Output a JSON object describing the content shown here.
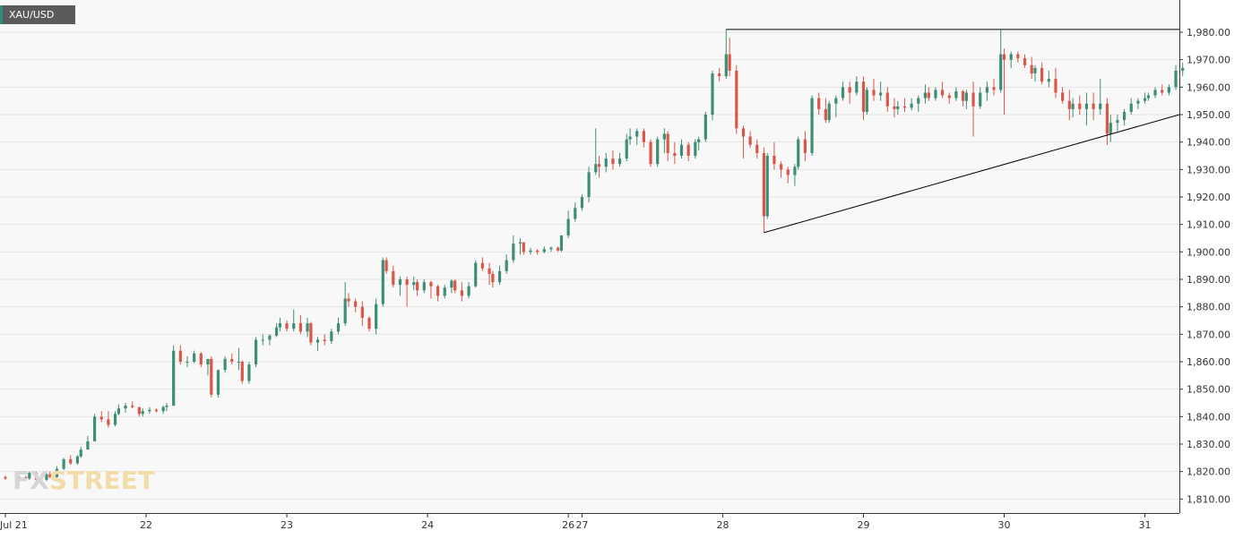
{
  "symbol": "XAU/USD",
  "watermark": {
    "left": "FX",
    "right": "STREET"
  },
  "colors": {
    "up": "#3e8e74",
    "down": "#d9574a",
    "plot_bg": "#f8f8f8",
    "grid": "#e6e6e6",
    "axis": "#333333",
    "trendline": "#000000"
  },
  "chart_data": {
    "type": "candlestick",
    "ylim": [
      1805,
      1985
    ],
    "y_ticks": [
      1810,
      1820,
      1830,
      1840,
      1850,
      1860,
      1870,
      1880,
      1890,
      1900,
      1910,
      1920,
      1930,
      1940,
      1950,
      1960,
      1970,
      1980
    ],
    "y_tick_labels": [
      "1,810.00",
      "1,820.00",
      "1,830.00",
      "1,840.00",
      "1,850.00",
      "1,860.00",
      "1,870.00",
      "1,880.00",
      "1,890.00",
      "1,900.00",
      "1,910.00",
      "1,920.00",
      "1,930.00",
      "1,940.00",
      "1,950.00",
      "1,960.00",
      "1,970.00",
      "1,980.00"
    ],
    "x_ticks": [
      {
        "label": "Jul 21",
        "index": 0
      },
      {
        "label": "22",
        "index": 41
      },
      {
        "label": "23",
        "index": 82
      },
      {
        "label": "24",
        "index": 123
      },
      {
        "label": "26",
        "index": 164
      },
      {
        "label": "27",
        "index": 168
      },
      {
        "label": "28",
        "index": 209
      },
      {
        "label": "29",
        "index": 250
      },
      {
        "label": "30",
        "index": 291
      },
      {
        "label": "31",
        "index": 332
      }
    ],
    "x_extent": [
      0,
      345
    ],
    "candle_spacing": 4,
    "candles": [
      [
        0,
        1818.0,
        1818.5,
        1817.0,
        1817.5
      ],
      [
        4,
        1817.5,
        1818.5,
        1816.5,
        1818.0
      ],
      [
        6,
        1818.0,
        1818.5,
        1817.0,
        1817.5
      ],
      [
        7,
        1817.5,
        1820.0,
        1817.0,
        1819.5
      ],
      [
        9,
        1819.5,
        1820.0,
        1816.0,
        1817.0
      ],
      [
        12,
        1817.0,
        1819.5,
        1816.5,
        1819.0
      ],
      [
        13,
        1819.0,
        1820.0,
        1817.5,
        1818.0
      ],
      [
        15,
        1818.0,
        1822.0,
        1817.5,
        1821.0
      ],
      [
        17,
        1821.0,
        1825.0,
        1820.5,
        1824.5
      ],
      [
        19,
        1824.5,
        1826.0,
        1822.5,
        1823.0
      ],
      [
        21,
        1823.0,
        1826.0,
        1822.5,
        1825.5
      ],
      [
        22,
        1825.5,
        1829.0,
        1825.0,
        1828.0
      ],
      [
        24,
        1828.0,
        1833.0,
        1828.0,
        1831.0
      ],
      [
        26,
        1831.0,
        1841.0,
        1831.0,
        1840.0
      ],
      [
        28,
        1840.0,
        1842.0,
        1838.0,
        1839.0
      ],
      [
        30,
        1839.0,
        1842.0,
        1836.0,
        1837.0
      ],
      [
        32,
        1837.0,
        1842.0,
        1836.5,
        1841.0
      ],
      [
        33,
        1841.0,
        1844.5,
        1840.5,
        1843.0
      ],
      [
        35,
        1843.0,
        1845.0,
        1841.5,
        1844.0
      ],
      [
        37,
        1844.0,
        1845.5,
        1843.0,
        1843.5
      ],
      [
        39,
        1843.5,
        1843.5,
        1840.0,
        1841.0
      ],
      [
        40,
        1841.0,
        1843.0,
        1840.0,
        1842.0
      ],
      [
        42,
        1842.0,
        1843.5,
        1841.0,
        1842.5
      ],
      [
        44,
        1842.5,
        1843.0,
        1841.5,
        1842.0
      ],
      [
        46,
        1842.0,
        1844.0,
        1841.0,
        1843.5
      ],
      [
        47,
        1843.5,
        1845.0,
        1842.0,
        1844.0
      ],
      [
        49,
        1844.0,
        1866.0,
        1844.0,
        1864.0
      ],
      [
        51,
        1864.0,
        1866.0,
        1859.0,
        1860.0
      ],
      [
        53,
        1860.0,
        1862.0,
        1858.0,
        1860.0
      ],
      [
        55,
        1860.0,
        1864.0,
        1859.5,
        1863.0
      ],
      [
        57,
        1863.0,
        1863.5,
        1858.0,
        1859.0
      ],
      [
        59,
        1859.0,
        1861.0,
        1855.0,
        1861.0
      ],
      [
        60,
        1861.0,
        1862.0,
        1847.0,
        1848.0
      ],
      [
        62,
        1848.0,
        1857.0,
        1847.0,
        1857.0
      ],
      [
        64,
        1857.0,
        1862.0,
        1856.0,
        1861.0
      ],
      [
        66,
        1861.0,
        1863.0,
        1859.0,
        1860.0
      ],
      [
        68,
        1860.0,
        1865.0,
        1857.0,
        1860.0
      ],
      [
        69,
        1860.0,
        1860.5,
        1852.0,
        1853.0
      ],
      [
        71,
        1853.0,
        1860.0,
        1852.0,
        1859.0
      ],
      [
        73,
        1859.0,
        1869.0,
        1858.0,
        1868.0
      ],
      [
        75,
        1868.0,
        1870.0,
        1866.0,
        1868.0
      ],
      [
        77,
        1868.0,
        1870.0,
        1866.0,
        1869.5
      ],
      [
        79,
        1869.5,
        1874.0,
        1869.0,
        1872.5
      ],
      [
        80,
        1872.5,
        1876.0,
        1871.0,
        1874.0
      ],
      [
        82,
        1874.0,
        1875.0,
        1871.0,
        1872.0
      ],
      [
        84,
        1872.0,
        1879.0,
        1871.0,
        1874.0
      ],
      [
        86,
        1874.0,
        1877.0,
        1870.0,
        1871.0
      ],
      [
        88,
        1871.0,
        1876.0,
        1869.0,
        1874.0
      ],
      [
        89,
        1874.0,
        1874.5,
        1866.0,
        1867.0
      ],
      [
        91,
        1867.0,
        1869.0,
        1864.0,
        1868.0
      ],
      [
        93,
        1868.0,
        1870.0,
        1866.0,
        1867.5
      ],
      [
        95,
        1867.5,
        1872.0,
        1866.5,
        1871.0
      ],
      [
        97,
        1871.0,
        1876.0,
        1870.0,
        1874.0
      ],
      [
        99,
        1874.0,
        1889.0,
        1873.0,
        1883.0
      ],
      [
        100,
        1883.0,
        1885.0,
        1880.0,
        1882.0
      ],
      [
        102,
        1882.0,
        1883.0,
        1878.0,
        1880.0
      ],
      [
        104,
        1880.0,
        1882.0,
        1873.0,
        1876.0
      ],
      [
        106,
        1876.0,
        1876.5,
        1871.0,
        1872.0
      ],
      [
        108,
        1872.0,
        1883.0,
        1870.0,
        1881.0
      ],
      [
        110,
        1881.0,
        1898.0,
        1880.0,
        1897.0
      ],
      [
        111,
        1897.0,
        1898.0,
        1892.0,
        1893.0
      ],
      [
        113,
        1893.0,
        1895.0,
        1887.0,
        1888.0
      ],
      [
        115,
        1888.0,
        1891.0,
        1884.0,
        1890.0
      ],
      [
        117,
        1890.0,
        1891.0,
        1880.0,
        1888.0
      ],
      [
        119,
        1888.0,
        1891.0,
        1886.0,
        1889.0
      ],
      [
        120,
        1889.0,
        1890.0,
        1884.0,
        1886.0
      ],
      [
        122,
        1886.0,
        1890.0,
        1885.0,
        1889.0
      ],
      [
        124,
        1889.0,
        1889.5,
        1883.0,
        1887.5
      ],
      [
        126,
        1887.5,
        1888.0,
        1882.0,
        1884.0
      ],
      [
        128,
        1884.0,
        1888.0,
        1883.0,
        1887.0
      ],
      [
        130,
        1887.0,
        1890.0,
        1885.0,
        1889.5
      ],
      [
        131,
        1889.5,
        1890.0,
        1885.0,
        1886.0
      ],
      [
        133,
        1886.0,
        1889.0,
        1882.0,
        1884.0
      ],
      [
        135,
        1884.0,
        1889.0,
        1883.0,
        1887.5
      ],
      [
        137,
        1887.5,
        1897.0,
        1887.0,
        1896.0
      ],
      [
        139,
        1896.0,
        1898.0,
        1893.0,
        1894.0
      ],
      [
        141,
        1894.0,
        1896.0,
        1888.0,
        1892.0
      ],
      [
        142,
        1892.0,
        1893.0,
        1887.0,
        1889.0
      ],
      [
        144,
        1889.0,
        1895.0,
        1888.0,
        1893.0
      ],
      [
        146,
        1893.0,
        1899.0,
        1892.0,
        1897.0
      ],
      [
        148,
        1897.0,
        1906.0,
        1896.0,
        1903.0
      ],
      [
        150,
        1903.0,
        1905.0,
        1899.0,
        1903.5
      ],
      [
        151,
        1903.5,
        1903.5,
        1899.0,
        1900.0
      ],
      [
        153,
        1900.0,
        1901.5,
        1899.0,
        1900.5
      ],
      [
        155,
        1900.5,
        1901.0,
        1899.0,
        1900.0
      ],
      [
        157,
        1900.0,
        1902.0,
        1899.5,
        1901.0
      ],
      [
        159,
        1901.0,
        1902.0,
        1900.0,
        1901.5
      ],
      [
        161,
        1901.5,
        1902.0,
        1900.0,
        1900.5
      ],
      [
        162,
        1900.5,
        1906.0,
        1900.0,
        1906.0
      ],
      [
        164,
        1906.0,
        1915.0,
        1905.0,
        1912.0
      ],
      [
        166,
        1912.0,
        1918.0,
        1911.0,
        1916.0
      ],
      [
        168,
        1916.0,
        1921.0,
        1915.0,
        1920.0
      ],
      [
        170,
        1920.0,
        1931.0,
        1918.0,
        1929.0
      ],
      [
        172,
        1929.0,
        1945.0,
        1928.0,
        1932.0
      ],
      [
        173,
        1932.0,
        1935.0,
        1927.0,
        1931.0
      ],
      [
        175,
        1931.0,
        1936.0,
        1929.0,
        1934.0
      ],
      [
        177,
        1934.0,
        1937.0,
        1930.0,
        1932.0
      ],
      [
        179,
        1932.0,
        1936.0,
        1931.0,
        1934.0
      ],
      [
        181,
        1934.0,
        1943.0,
        1933.0,
        1941.0
      ],
      [
        182,
        1941.0,
        1945.0,
        1939.0,
        1942.0
      ],
      [
        184,
        1942.0,
        1945.0,
        1939.0,
        1944.0
      ],
      [
        186,
        1944.0,
        1945.0,
        1938.0,
        1940.0
      ],
      [
        188,
        1940.0,
        1941.0,
        1931.0,
        1932.0
      ],
      [
        190,
        1932.0,
        1942.0,
        1931.0,
        1941.0
      ],
      [
        192,
        1941.0,
        1945.0,
        1936.0,
        1943.0
      ],
      [
        193,
        1943.0,
        1944.0,
        1933.0,
        1936.0
      ],
      [
        195,
        1936.0,
        1940.0,
        1932.0,
        1935.0
      ],
      [
        197,
        1935.0,
        1941.0,
        1934.0,
        1939.0
      ],
      [
        199,
        1939.0,
        1940.0,
        1933.0,
        1935.0
      ],
      [
        201,
        1935.0,
        1941.0,
        1934.0,
        1940.0
      ],
      [
        202,
        1940.0,
        1942.0,
        1937.0,
        1941.0
      ],
      [
        204,
        1941.0,
        1951.0,
        1940.0,
        1950.0
      ],
      [
        206,
        1950.0,
        1966.0,
        1948.0,
        1965.0
      ],
      [
        208,
        1965.0,
        1967.0,
        1962.0,
        1964.0
      ],
      [
        210,
        1964.0,
        1981.0,
        1963.0,
        1972.0
      ],
      [
        211,
        1972.0,
        1978.0,
        1964.0,
        1966.0
      ],
      [
        213,
        1966.0,
        1968.0,
        1943.0,
        1945.0
      ],
      [
        215,
        1945.0,
        1946.0,
        1934.0,
        1942.0
      ],
      [
        217,
        1942.0,
        1944.0,
        1938.0,
        1939.0
      ],
      [
        219,
        1939.0,
        1941.0,
        1934.0,
        1936.0
      ],
      [
        221,
        1936.0,
        1938.0,
        1907.0,
        1913.0
      ],
      [
        222,
        1913.0,
        1936.0,
        1912.0,
        1935.0
      ],
      [
        224,
        1935.0,
        1940.0,
        1930.0,
        1932.0
      ],
      [
        226,
        1932.0,
        1933.0,
        1927.0,
        1930.0
      ],
      [
        228,
        1930.0,
        1931.0,
        1925.0,
        1928.0
      ],
      [
        230,
        1928.0,
        1932.0,
        1924.0,
        1931.0
      ],
      [
        231,
        1931.0,
        1942.0,
        1930.0,
        1941.0
      ],
      [
        233,
        1941.0,
        1944.0,
        1933.0,
        1936.0
      ],
      [
        235,
        1936.0,
        1957.0,
        1935.0,
        1956.0
      ],
      [
        237,
        1956.0,
        1958.0,
        1950.0,
        1952.0
      ],
      [
        239,
        1952.0,
        1956.0,
        1947.0,
        1948.0
      ],
      [
        240,
        1948.0,
        1955.0,
        1947.0,
        1954.0
      ],
      [
        242,
        1954.0,
        1957.0,
        1949.0,
        1956.0
      ],
      [
        244,
        1956.0,
        1962.0,
        1955.0,
        1960.0
      ],
      [
        246,
        1960.0,
        1962.0,
        1954.0,
        1958.0
      ],
      [
        248,
        1958.0,
        1964.0,
        1957.0,
        1962.0
      ],
      [
        250,
        1962.0,
        1964.0,
        1948.0,
        1951.0
      ],
      [
        251,
        1951.0,
        1960.0,
        1950.0,
        1959.0
      ],
      [
        253,
        1959.0,
        1963.0,
        1955.0,
        1957.0
      ],
      [
        255,
        1957.0,
        1962.0,
        1955.0,
        1958.0
      ],
      [
        257,
        1958.0,
        1960.0,
        1951.0,
        1953.0
      ],
      [
        259,
        1953.0,
        1956.0,
        1949.0,
        1952.0
      ],
      [
        260,
        1952.0,
        1955.0,
        1950.0,
        1953.0
      ],
      [
        262,
        1953.0,
        1956.0,
        1951.0,
        1952.5
      ],
      [
        264,
        1952.5,
        1956.0,
        1951.5,
        1954.0
      ],
      [
        266,
        1954.0,
        1957.0,
        1951.0,
        1956.0
      ],
      [
        268,
        1956.0,
        1961.0,
        1954.0,
        1958.0
      ],
      [
        269,
        1958.0,
        1960.0,
        1955.0,
        1956.0
      ],
      [
        271,
        1956.0,
        1960.0,
        1955.0,
        1959.0
      ],
      [
        273,
        1959.0,
        1962.0,
        1956.0,
        1957.0
      ],
      [
        275,
        1957.0,
        1958.0,
        1954.0,
        1956.0
      ],
      [
        277,
        1956.0,
        1960.0,
        1955.0,
        1958.5
      ],
      [
        279,
        1958.5,
        1959.0,
        1953.0,
        1955.0
      ],
      [
        280,
        1955.0,
        1959.0,
        1952.0,
        1958.0
      ],
      [
        282,
        1958.0,
        1962.0,
        1942.0,
        1953.0
      ],
      [
        284,
        1953.0,
        1960.0,
        1952.0,
        1958.0
      ],
      [
        286,
        1958.0,
        1962.0,
        1955.0,
        1960.0
      ],
      [
        288,
        1960.0,
        1963.0,
        1957.0,
        1959.0
      ],
      [
        290,
        1959.0,
        1981.0,
        1958.0,
        1972.0
      ],
      [
        291,
        1972.0,
        1974.0,
        1950.0,
        1970.0
      ],
      [
        293,
        1970.0,
        1973.0,
        1967.0,
        1972.0
      ],
      [
        295,
        1972.0,
        1973.0,
        1969.0,
        1970.5
      ],
      [
        297,
        1970.5,
        1972.0,
        1967.0,
        1968.0
      ],
      [
        299,
        1968.0,
        1971.0,
        1963.0,
        1965.0
      ],
      [
        300,
        1965.0,
        1968.0,
        1962.0,
        1967.0
      ],
      [
        302,
        1967.0,
        1969.0,
        1961.0,
        1962.0
      ],
      [
        304,
        1962.0,
        1966.0,
        1960.0,
        1963.0
      ],
      [
        306,
        1963.0,
        1967.0,
        1956.0,
        1958.0
      ],
      [
        308,
        1958.0,
        1960.0,
        1954.0,
        1955.0
      ],
      [
        310,
        1955.0,
        1959.0,
        1948.0,
        1952.0
      ],
      [
        311,
        1952.0,
        1956.0,
        1949.0,
        1954.0
      ],
      [
        313,
        1954.0,
        1957.0,
        1950.0,
        1952.0
      ],
      [
        315,
        1952.0,
        1958.0,
        1946.0,
        1954.0
      ],
      [
        317,
        1954.0,
        1958.0,
        1948.0,
        1952.0
      ],
      [
        319,
        1952.0,
        1963.0,
        1950.0,
        1954.0
      ],
      [
        321,
        1954.0,
        1956.0,
        1939.0,
        1943.0
      ],
      [
        322,
        1943.0,
        1950.0,
        1940.0,
        1947.0
      ],
      [
        324,
        1947.0,
        1950.0,
        1944.0,
        1948.0
      ],
      [
        326,
        1948.0,
        1952.0,
        1946.0,
        1951.0
      ],
      [
        328,
        1951.0,
        1956.0,
        1950.0,
        1954.0
      ],
      [
        330,
        1954.0,
        1956.0,
        1952.0,
        1955.0
      ],
      [
        332,
        1955.0,
        1958.0,
        1954.0,
        1956.0
      ],
      [
        333,
        1956.0,
        1958.0,
        1955.0,
        1957.0
      ],
      [
        335,
        1957.0,
        1960.0,
        1956.0,
        1959.0
      ],
      [
        337,
        1959.0,
        1961.0,
        1957.0,
        1958.0
      ],
      [
        339,
        1958.0,
        1961.0,
        1957.0,
        1960.0
      ],
      [
        341,
        1960.0,
        1968.0,
        1959.0,
        1966.0
      ],
      [
        343,
        1966.0,
        1969.0,
        1964.0,
        1967.0
      ]
    ],
    "trendlines": [
      {
        "x1": 210,
        "y1": 1981,
        "x2": 345,
        "y2": 1981
      },
      {
        "x1": 221,
        "y1": 1907,
        "x2": 345,
        "y2": 1950
      }
    ]
  }
}
